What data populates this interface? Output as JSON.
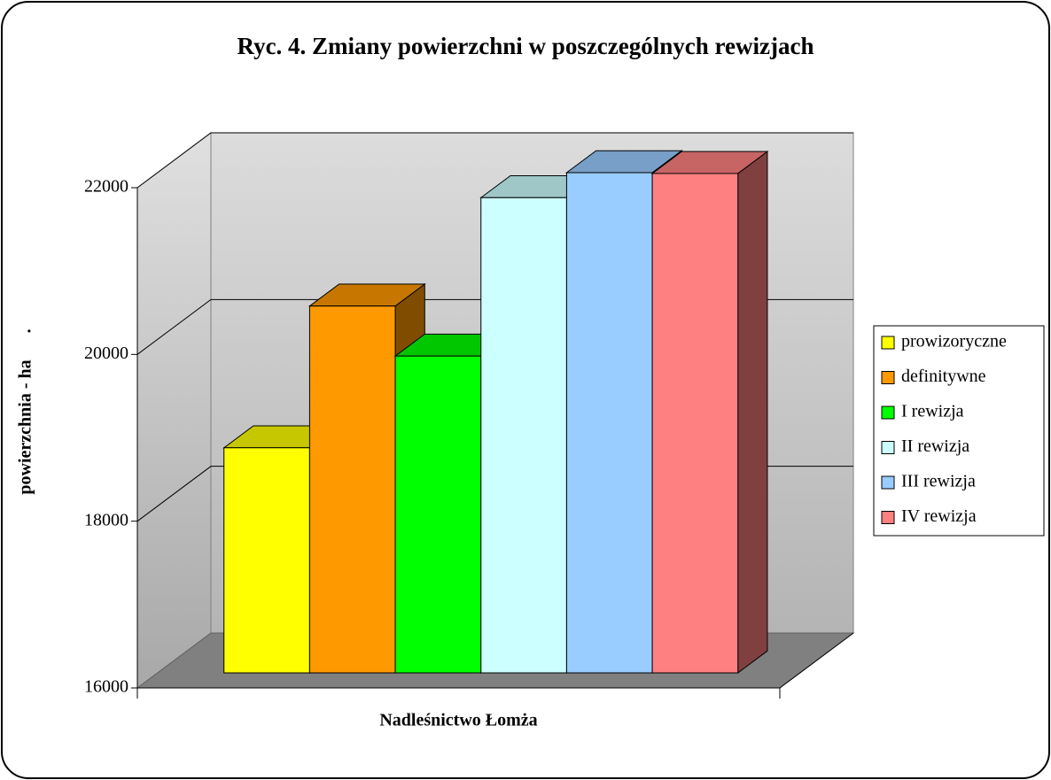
{
  "chart_data": {
    "type": "bar3d",
    "title": "Ryc. 4. Zmiany powierzchni w poszczególnych rewizjach",
    "y_label": "powierzchnia - ha      .",
    "categories": [
      "Nadleśnictwo Łomża"
    ],
    "series": [
      {
        "name": "prowizoryczne",
        "color": "#ffff00",
        "values": [
          18700
        ]
      },
      {
        "name": "definitywne",
        "color": "#ff9900",
        "values": [
          20400
        ]
      },
      {
        "name": "I rewizja",
        "color": "#00ff00",
        "values": [
          19800
        ]
      },
      {
        "name": "II rewizja",
        "color": "#ccffff",
        "values": [
          21700
        ]
      },
      {
        "name": "III rewizja",
        "color": "#99ccff",
        "values": [
          22000
        ]
      },
      {
        "name": "IV rewizja",
        "color": "#ff8080",
        "values": [
          21990
        ]
      }
    ],
    "ylim": [
      16000,
      22000
    ],
    "yticks": [
      16000,
      18000,
      20000,
      22000
    ],
    "grid": true,
    "legend": "right"
  }
}
